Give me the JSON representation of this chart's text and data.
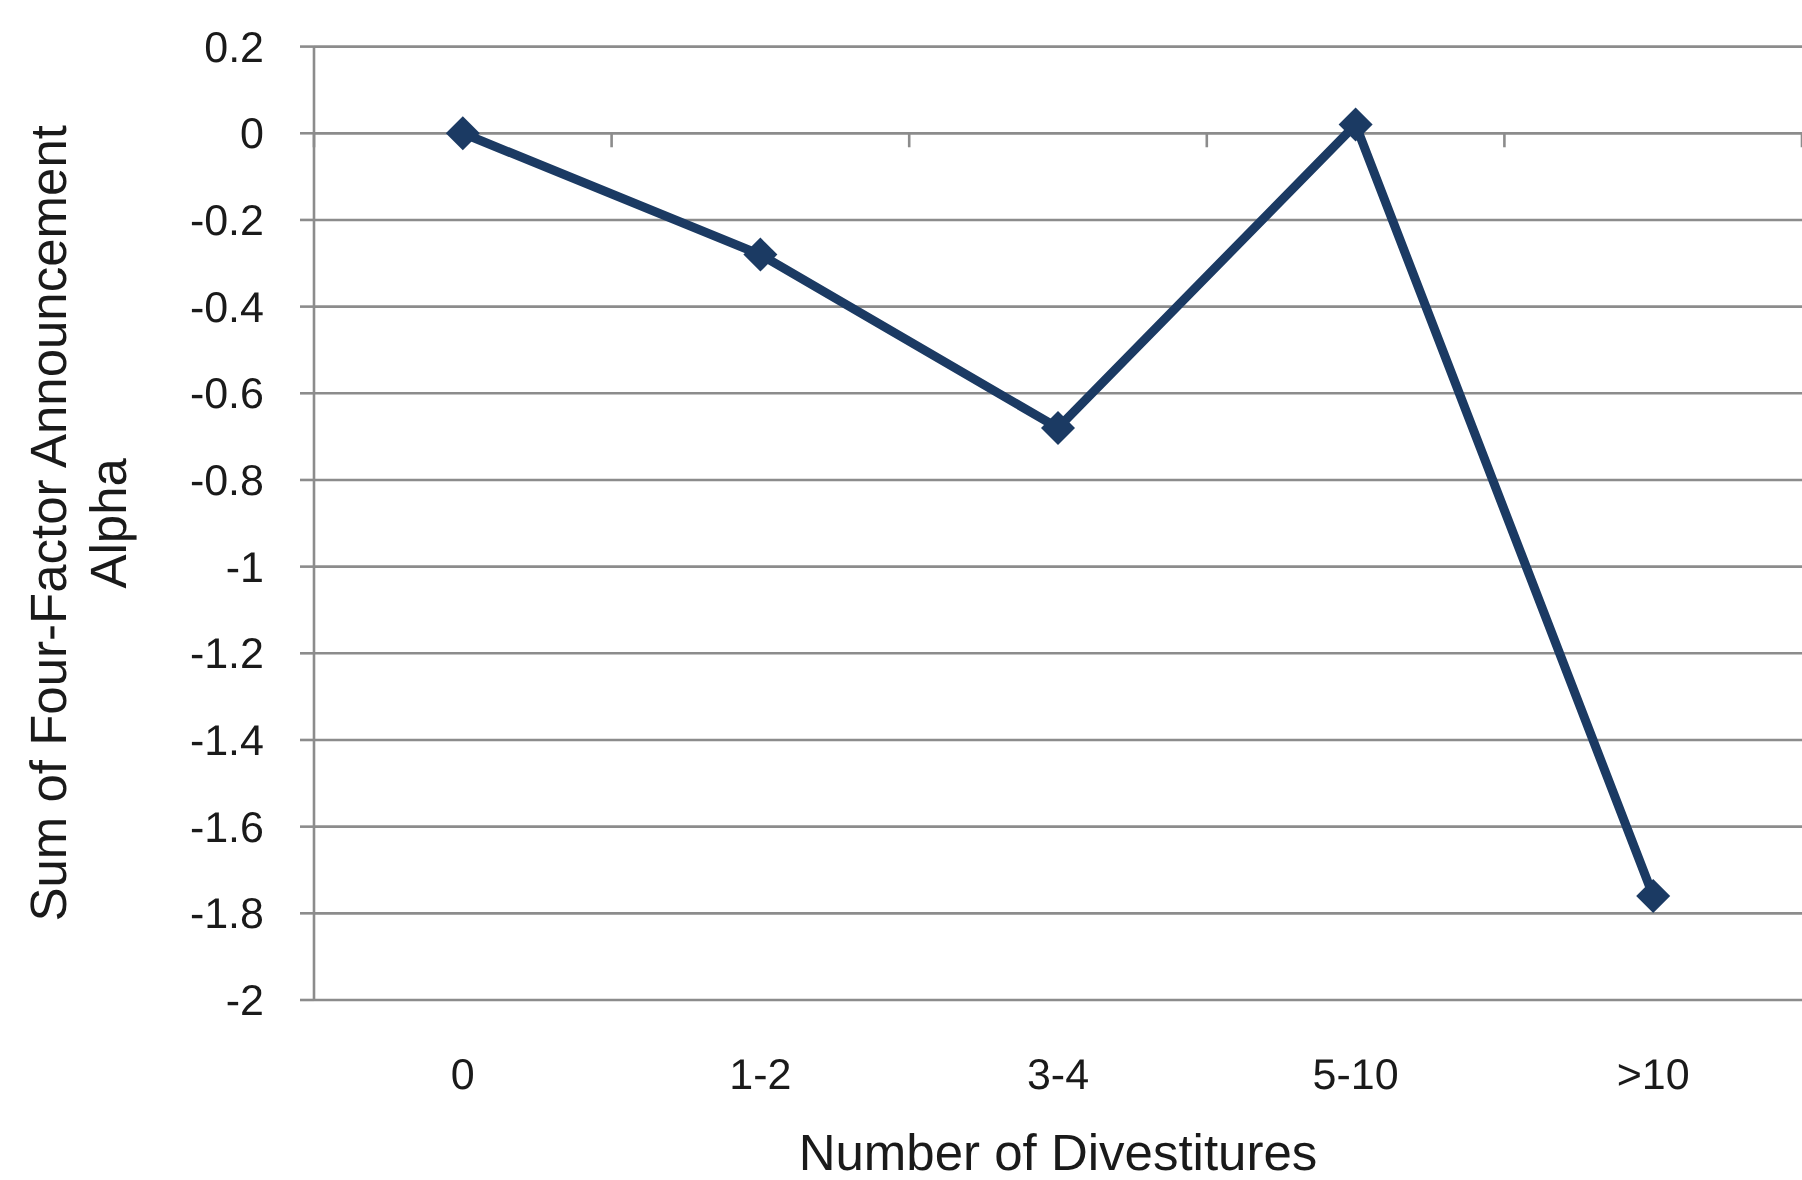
{
  "chart_data": {
    "type": "line",
    "xlabel": "Number of Divestitures",
    "ylabel": "Sum of Four-Factor Announcement Alpha",
    "categories": [
      "0",
      "1-2",
      "3-4",
      "5-10",
      ">10"
    ],
    "series": [
      {
        "color": "#1b3a63",
        "values": [
          0,
          -0.28,
          -0.68,
          0.02,
          -1.76
        ]
      }
    ],
    "ylim": [
      -2,
      0.2
    ],
    "yticks": [
      0.2,
      0,
      -0.2,
      -0.4,
      -0.6,
      -0.8,
      -1,
      -1.2,
      -1.4,
      -1.6,
      -1.8,
      -2
    ],
    "grid": "y",
    "marker": "diamond",
    "line_style": "solid"
  }
}
